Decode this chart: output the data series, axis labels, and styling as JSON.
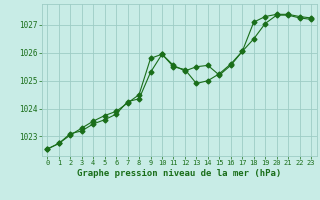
{
  "line1": {
    "x": [
      0,
      1,
      2,
      3,
      4,
      5,
      6,
      7,
      8,
      9,
      10,
      11,
      12,
      13,
      14,
      15,
      16,
      17,
      18,
      19,
      20,
      21,
      22,
      23
    ],
    "y": [
      1022.55,
      1022.75,
      1023.05,
      1023.3,
      1023.55,
      1023.75,
      1023.9,
      1024.2,
      1024.5,
      1025.8,
      1025.95,
      1025.55,
      1025.35,
      1025.5,
      1025.55,
      1025.2,
      1025.55,
      1026.05,
      1027.1,
      1027.3,
      1027.38,
      1027.38,
      1027.3,
      1027.25
    ]
  },
  "line2": {
    "x": [
      0,
      1,
      2,
      3,
      4,
      5,
      6,
      7,
      8,
      9,
      10,
      11,
      12,
      13,
      14,
      15,
      16,
      17,
      18,
      19,
      20,
      21,
      22,
      23
    ],
    "y": [
      1022.55,
      1022.75,
      1023.1,
      1023.2,
      1023.45,
      1023.6,
      1023.8,
      1024.25,
      1024.35,
      1025.3,
      1025.95,
      1025.5,
      1025.4,
      1024.9,
      1025.0,
      1025.25,
      1025.6,
      1026.05,
      1026.5,
      1027.05,
      1027.35,
      1027.35,
      1027.25,
      1027.2
    ]
  },
  "line_color": "#1a6e1a",
  "marker": "D",
  "marker_size": 2.5,
  "background_color": "#c8ece6",
  "grid_color": "#9eccc5",
  "xlabel": "Graphe pression niveau de la mer (hPa)",
  "xlabel_color": "#1a6e1a",
  "tick_color": "#1a6e1a",
  "ylim": [
    1022.3,
    1027.75
  ],
  "yticks": [
    1023,
    1024,
    1025,
    1026,
    1027
  ],
  "xlim": [
    -0.5,
    23.5
  ],
  "xticks": [
    0,
    1,
    2,
    3,
    4,
    5,
    6,
    7,
    8,
    9,
    10,
    11,
    12,
    13,
    14,
    15,
    16,
    17,
    18,
    19,
    20,
    21,
    22,
    23
  ]
}
